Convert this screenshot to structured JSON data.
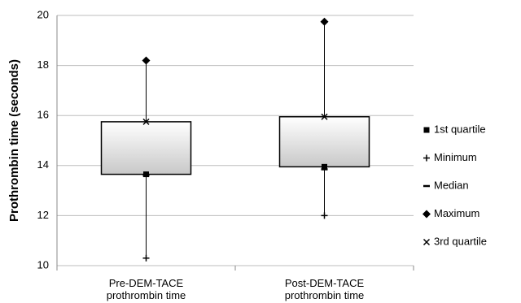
{
  "chart_data": {
    "type": "box",
    "y_label": "Prothrombin time (seconds)",
    "categories": [
      "Pre-DEM-TACE prothrombin time",
      "Post-DEM-TACE prothrombin time"
    ],
    "ylim": [
      10,
      20
    ],
    "yticks": [
      10,
      12,
      14,
      16,
      18,
      20
    ],
    "grid": true,
    "legend": "right",
    "box_color": "#c8c8c8",
    "series": [
      {
        "name": "1st quartile",
        "role": "q1",
        "marker": "square",
        "color": "#000000",
        "values": [
          13.65,
          13.95
        ]
      },
      {
        "name": "Minimum",
        "role": "min",
        "marker": "plus",
        "color": "#000000",
        "values": [
          10.3,
          12.0
        ]
      },
      {
        "name": "Median",
        "role": "median",
        "marker": "dash",
        "color": "#000000",
        "values": [
          13.6,
          13.85
        ]
      },
      {
        "name": "Maximum",
        "role": "max",
        "marker": "diamond",
        "color": "#000000",
        "values": [
          18.2,
          19.75
        ]
      },
      {
        "name": "3rd quartile",
        "role": "q3",
        "marker": "x",
        "color": "#000000",
        "values": [
          15.75,
          15.95
        ]
      }
    ]
  }
}
